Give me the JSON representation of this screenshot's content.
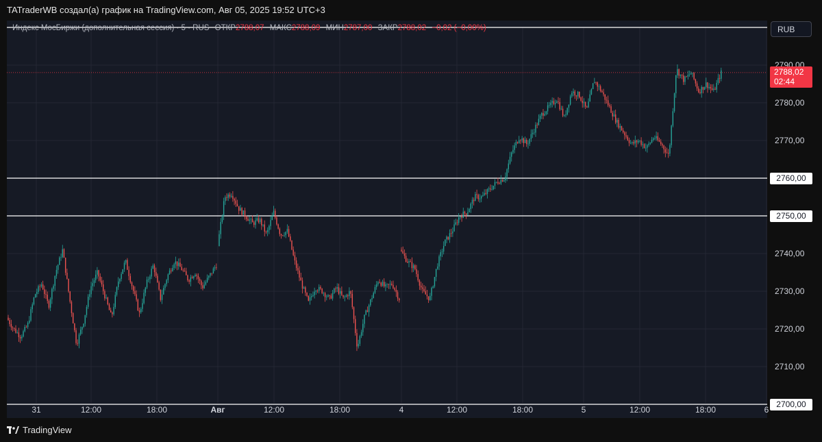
{
  "header": {
    "title": "TATraderWB создал(а) график на TradingView.com, Авг 05, 2025 19:52 UTC+3"
  },
  "legend": {
    "symbol": "Индекс МосБиржи (дополнительная сессия) · 5 · RUS",
    "open_label": "ОТКР",
    "open_value": "2788,07",
    "high_label": "МАКС",
    "high_value": "2788,09",
    "low_label": "МИН",
    "low_value": "2787,00",
    "close_label": "ЗАКР",
    "close_value": "2788,02",
    "change": "−0,02 (−0,00%)"
  },
  "currency": "RUB",
  "last_price": {
    "value": "2788,02",
    "countdown": "02:44"
  },
  "footer": {
    "brand": "TradingView"
  },
  "colors": {
    "up": "#26a69a",
    "down": "#ef5350",
    "last_price": "#f23645",
    "background": "#161a25",
    "level_line": "#ffffff"
  },
  "chart_data": {
    "type": "candlestick",
    "interval_minutes": 5,
    "y_ticks": [
      2790,
      2780,
      2770,
      2760,
      2750,
      2740,
      2730,
      2720,
      2710,
      2700
    ],
    "y_tick_labels": [
      "2790,00",
      "2780,00",
      "2770,00",
      "2760,00",
      "2750,00",
      "2740,00",
      "2730,00",
      "2720,00",
      "2710,00",
      "2700,00"
    ],
    "ylim": [
      2696.5,
      2801.5
    ],
    "horizontal_levels": [
      {
        "value": 2760,
        "label": "2760,00"
      },
      {
        "value": 2750,
        "label": "2750,00"
      },
      {
        "value": 2700,
        "label": "2700,00"
      },
      {
        "value": 2807,
        "label": ""
      }
    ],
    "x_ticks": [
      {
        "label": "31",
        "bold": false
      },
      {
        "label": "12:00",
        "bold": false
      },
      {
        "label": "18:00",
        "bold": false
      },
      {
        "label": "Авг",
        "bold": true
      },
      {
        "label": "12:00",
        "bold": false
      },
      {
        "label": "18:00",
        "bold": false
      },
      {
        "label": "4",
        "bold": false
      },
      {
        "label": "12:00",
        "bold": false
      },
      {
        "label": "18:00",
        "bold": false
      },
      {
        "label": "5",
        "bold": false
      },
      {
        "label": "12:00",
        "bold": false
      },
      {
        "label": "18:00",
        "bold": false
      },
      {
        "label": "6",
        "bold": false
      }
    ],
    "sessions": [
      {
        "day": "31",
        "path": [
          2723,
          2720,
          2718,
          2721,
          2729,
          2732,
          2726,
          2735,
          2741,
          2728,
          2716,
          2722,
          2731,
          2735,
          2729,
          2723,
          2733,
          2738,
          2731,
          2724,
          2732,
          2737,
          2728,
          2734,
          2738,
          2736,
          2733,
          2735,
          2731,
          2734,
          2737
        ]
      },
      {
        "day": "Авг",
        "path": [
          2742,
          2755,
          2756,
          2752,
          2750,
          2748,
          2749,
          2745,
          2751,
          2745,
          2746,
          2738,
          2732,
          2727,
          2731,
          2730,
          2728,
          2731,
          2728,
          2730,
          2715,
          2723,
          2728,
          2733,
          2731,
          2732,
          2728
        ]
      },
      {
        "day": "4",
        "path": [
          2741,
          2738,
          2736,
          2730,
          2728,
          2737,
          2743,
          2746,
          2750,
          2751,
          2755,
          2755,
          2757,
          2759,
          2760,
          2767,
          2771,
          2769,
          2773,
          2777,
          2779,
          2781,
          2776,
          2783,
          2782,
          2778,
          2786,
          2783,
          2779,
          2775,
          2772,
          2769,
          2770,
          2768,
          2771,
          2769,
          2766,
          2789,
          2786,
          2788,
          2783,
          2785,
          2783,
          2788
        ]
      }
    ],
    "session_x_ranges": [
      [
        12,
        318
      ],
      [
        320,
        585
      ],
      [
        586,
        1055
      ]
    ]
  }
}
